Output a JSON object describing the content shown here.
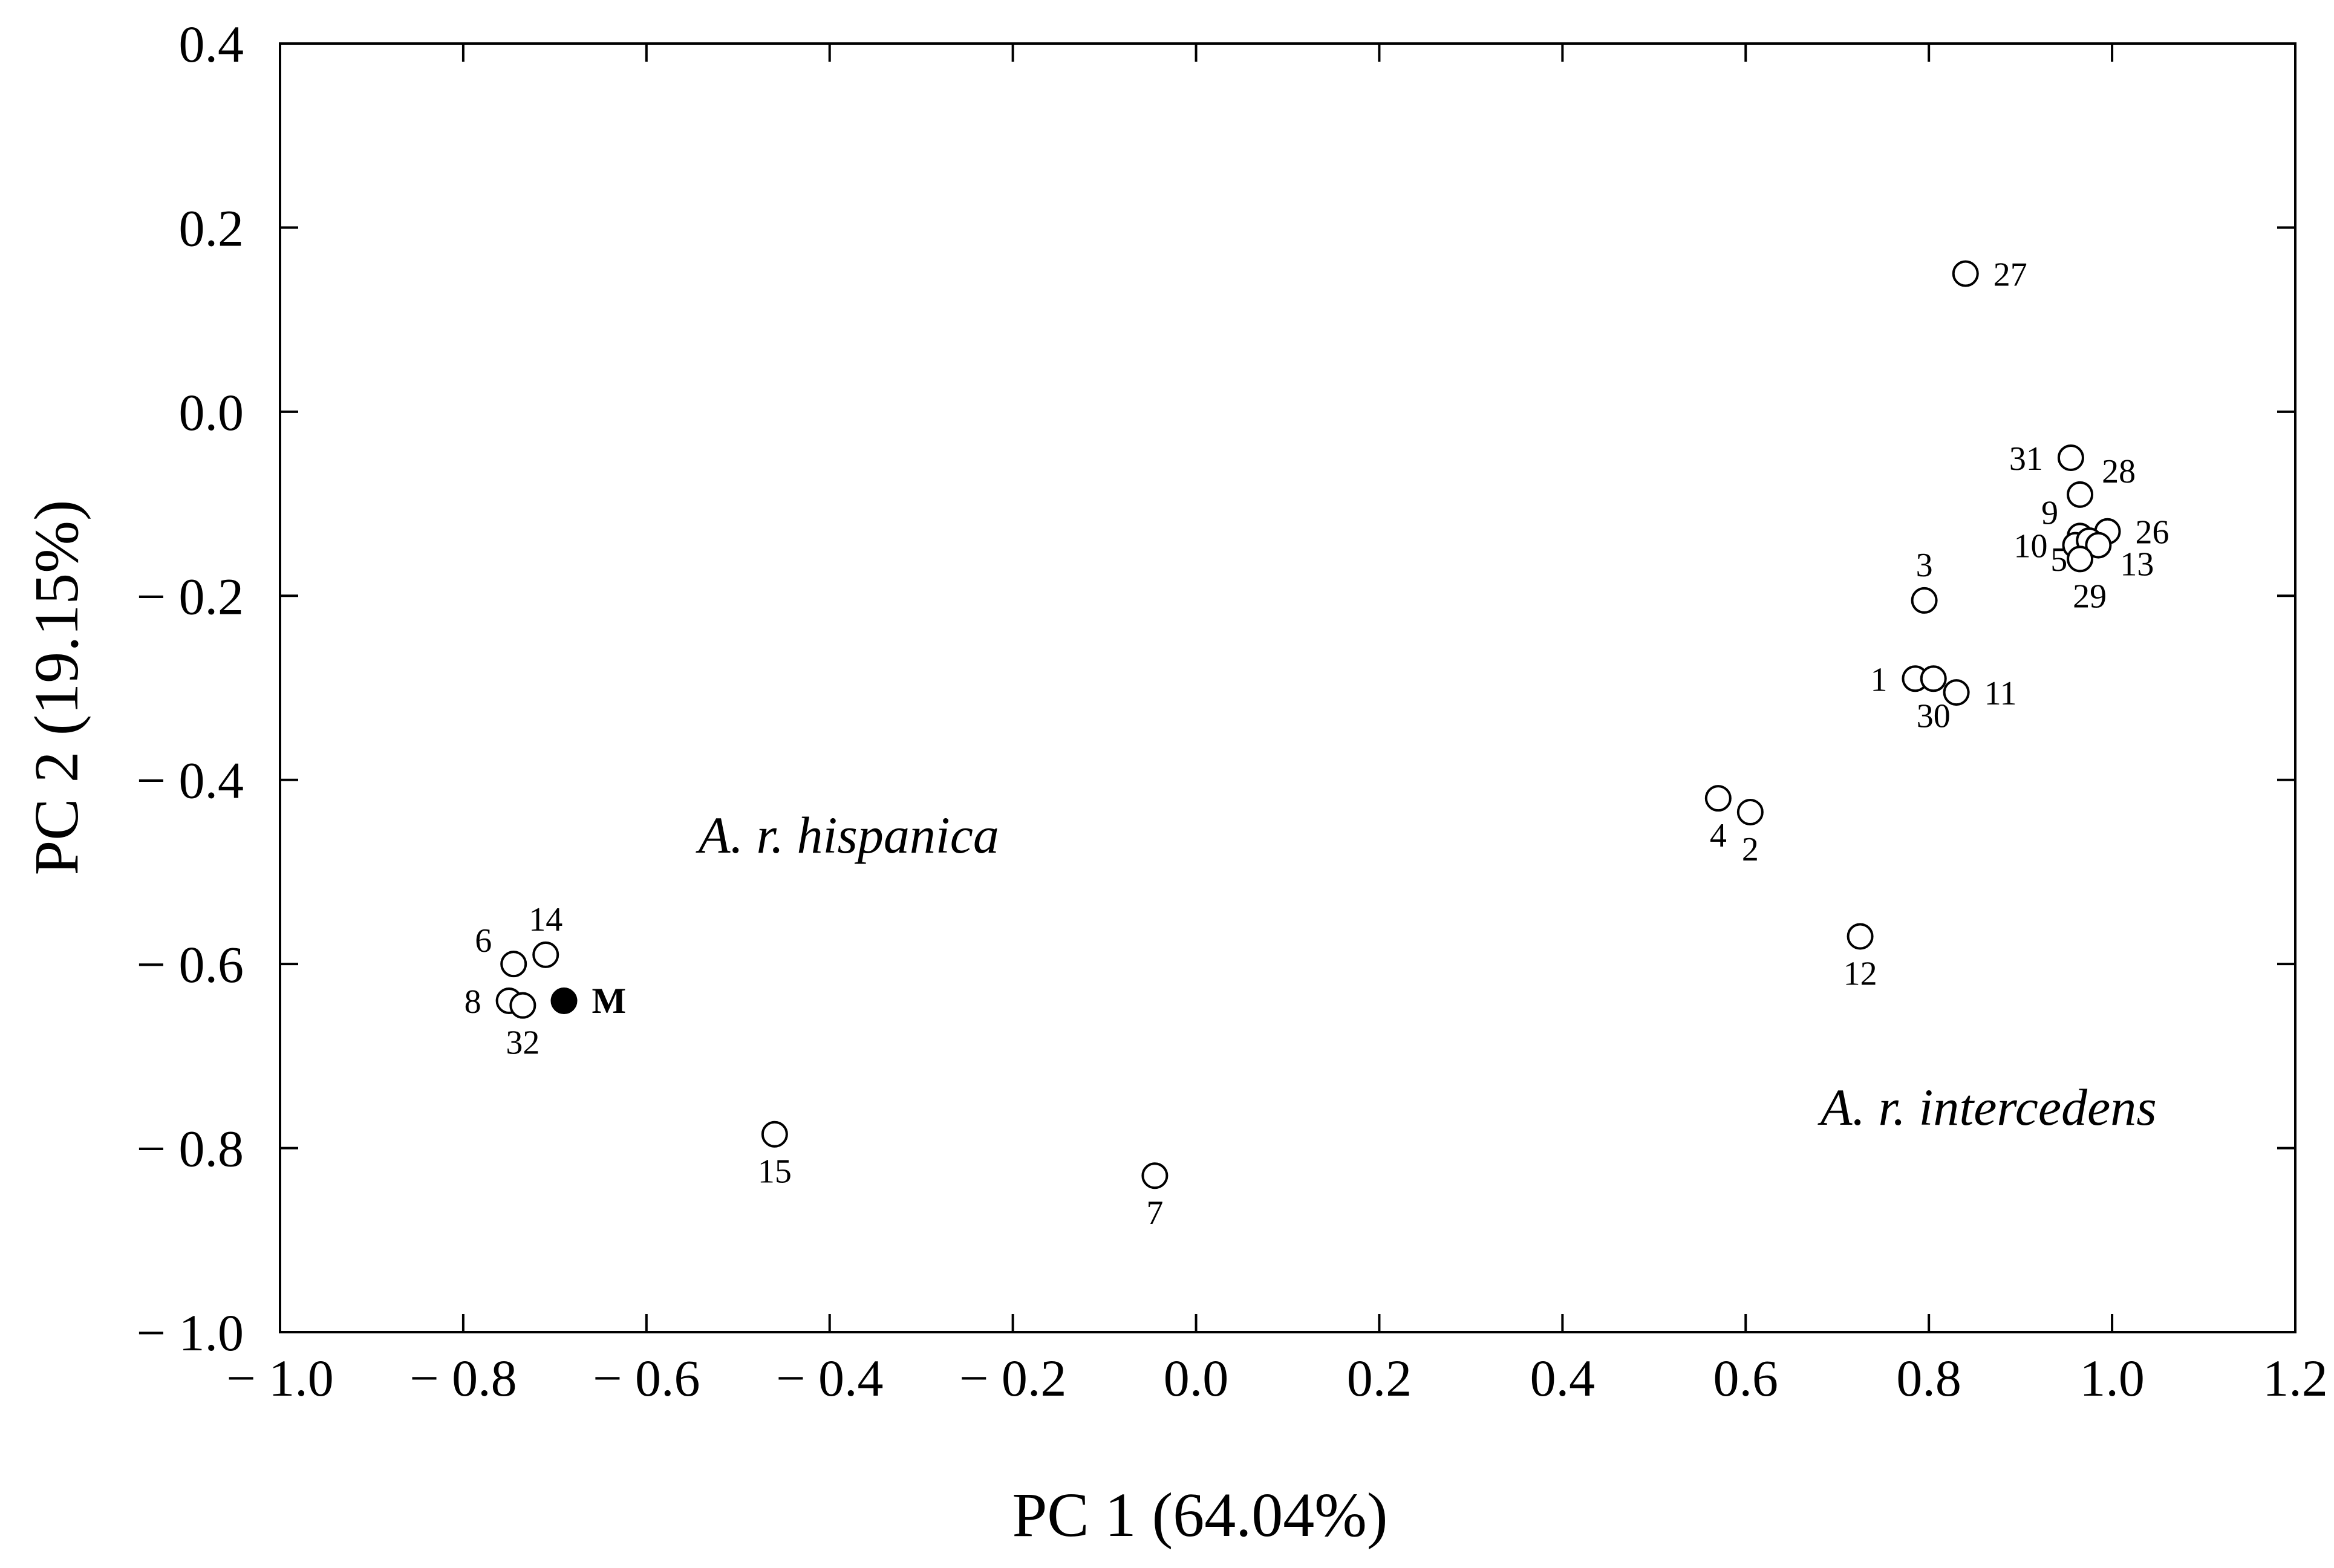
{
  "chart_data": {
    "type": "scatter",
    "xlabel": "PC 1 (64.04%)",
    "ylabel": "PC 2 (19.15%)",
    "xlim": [
      -1.0,
      1.2
    ],
    "ylim": [
      -1.0,
      0.4
    ],
    "x_ticks": [
      -1.0,
      -0.8,
      -0.6,
      -0.4,
      -0.2,
      0.0,
      0.2,
      0.4,
      0.6,
      0.8,
      1.0,
      1.2
    ],
    "x_tick_labels": [
      "− 1.0",
      "− 0.8",
      "− 0.6",
      "− 0.4",
      "− 0.2",
      "0.0",
      "0.2",
      "0.4",
      "0.6",
      "0.8",
      "1.0",
      "1.2"
    ],
    "y_ticks": [
      0.4,
      0.2,
      0.0,
      -0.2,
      -0.4,
      -0.6,
      -0.8,
      -1.0
    ],
    "y_tick_labels": [
      "0.4",
      "0.2",
      "0.0",
      "− 0.2",
      "− 0.4",
      "− 0.6",
      "− 0.8",
      "− 1.0"
    ],
    "grid": false,
    "annotations": [
      "A. r. hispanica",
      "A. r. intercedens"
    ],
    "points": [
      {
        "label": "27",
        "x": 0.84,
        "y": 0.15,
        "filled": false,
        "label_pos": "right"
      },
      {
        "label": "31",
        "x": 0.955,
        "y": -0.05,
        "filled": false,
        "label_pos": "left"
      },
      {
        "label": "28",
        "x": 0.965,
        "y": -0.09,
        "filled": false,
        "label_pos": "upper-right"
      },
      {
        "label": "9",
        "x": 0.965,
        "y": -0.135,
        "filled": false,
        "label_pos": "upper-left"
      },
      {
        "label": "26",
        "x": 0.995,
        "y": -0.13,
        "filled": false,
        "label_pos": "right"
      },
      {
        "label": "10",
        "x": 0.96,
        "y": -0.145,
        "filled": false,
        "label_pos": "left"
      },
      {
        "label": "5",
        "x": 0.975,
        "y": -0.14,
        "filled": false,
        "label_pos": "lower-left"
      },
      {
        "label": "13",
        "x": 0.985,
        "y": -0.145,
        "filled": false,
        "label_pos": "lower-right"
      },
      {
        "label": "29",
        "x": 0.965,
        "y": -0.16,
        "filled": false,
        "label_pos": "below-right"
      },
      {
        "label": "3",
        "x": 0.795,
        "y": -0.205,
        "filled": false,
        "label_pos": "above"
      },
      {
        "label": "1",
        "x": 0.785,
        "y": -0.29,
        "filled": false,
        "label_pos": "left"
      },
      {
        "label": "30",
        "x": 0.805,
        "y": -0.29,
        "filled": false,
        "label_pos": "below"
      },
      {
        "label": "11",
        "x": 0.83,
        "y": -0.305,
        "filled": false,
        "label_pos": "right"
      },
      {
        "label": "4",
        "x": 0.57,
        "y": -0.42,
        "filled": false,
        "label_pos": "below"
      },
      {
        "label": "2",
        "x": 0.605,
        "y": -0.435,
        "filled": false,
        "label_pos": "below"
      },
      {
        "label": "12",
        "x": 0.725,
        "y": -0.57,
        "filled": false,
        "label_pos": "below"
      },
      {
        "label": "6",
        "x": -0.745,
        "y": -0.6,
        "filled": false,
        "label_pos": "upper-left"
      },
      {
        "label": "14",
        "x": -0.71,
        "y": -0.59,
        "filled": false,
        "label_pos": "above"
      },
      {
        "label": "8",
        "x": -0.75,
        "y": -0.64,
        "filled": false,
        "label_pos": "left"
      },
      {
        "label": "32",
        "x": -0.735,
        "y": -0.645,
        "filled": false,
        "label_pos": "below"
      },
      {
        "label": "M",
        "x": -0.69,
        "y": -0.64,
        "filled": true,
        "label_pos": "right"
      },
      {
        "label": "15",
        "x": -0.46,
        "y": -0.785,
        "filled": false,
        "label_pos": "below"
      },
      {
        "label": "7",
        "x": -0.045,
        "y": -0.83,
        "filled": false,
        "label_pos": "below"
      }
    ]
  }
}
